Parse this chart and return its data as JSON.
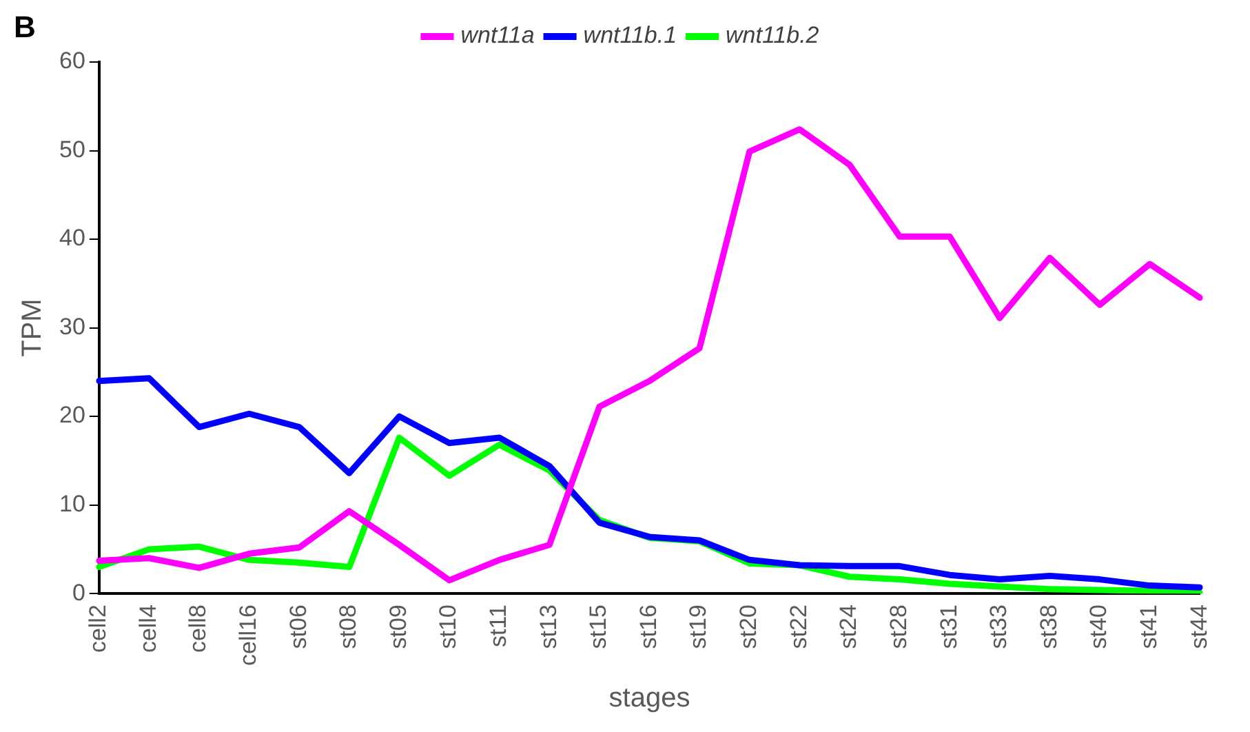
{
  "chart_data": {
    "type": "line",
    "xlabel": "stages",
    "ylabel": "TPM",
    "annotations": [
      "B"
    ],
    "categories": [
      "cell2",
      "cell4",
      "cell8",
      "cell16",
      "st06",
      "st08",
      "st09",
      "st10",
      "st11",
      "st13",
      "st15",
      "st16",
      "st19",
      "st20",
      "st22",
      "st24",
      "st28",
      "st31",
      "st33",
      "st38",
      "st40",
      "st41",
      "st44"
    ],
    "series": [
      {
        "name": "wnt11a",
        "color": "#ff00ff",
        "values": [
          3.7,
          4.0,
          2.9,
          4.5,
          5.2,
          9.3,
          5.5,
          1.5,
          3.8,
          5.5,
          21.1,
          24.0,
          27.7,
          49.9,
          52.4,
          48.4,
          40.3,
          40.3,
          31.1,
          37.9,
          32.6,
          37.2,
          33.4
        ]
      },
      {
        "name": "wnt11b.1",
        "color": "#0000ff",
        "values": [
          24.0,
          24.3,
          18.8,
          20.3,
          18.8,
          13.6,
          20.0,
          17.0,
          17.6,
          14.4,
          8.0,
          6.4,
          6.0,
          3.8,
          3.2,
          3.1,
          3.1,
          2.1,
          1.6,
          2.0,
          1.6,
          0.9,
          0.7
        ]
      },
      {
        "name": "wnt11b.2",
        "color": "#00ff00",
        "values": [
          3.0,
          5.0,
          5.3,
          3.8,
          3.5,
          3.0,
          17.6,
          13.3,
          16.8,
          13.9,
          8.3,
          6.3,
          5.9,
          3.4,
          3.2,
          1.9,
          1.6,
          1.1,
          0.8,
          0.5,
          0.4,
          0.3,
          0.1
        ]
      }
    ],
    "ylim": [
      0,
      60
    ],
    "yticks": [
      0,
      10,
      20,
      30,
      40,
      50,
      60
    ],
    "grid": false,
    "legend": "top",
    "marker": "none",
    "line_style": "solid"
  }
}
